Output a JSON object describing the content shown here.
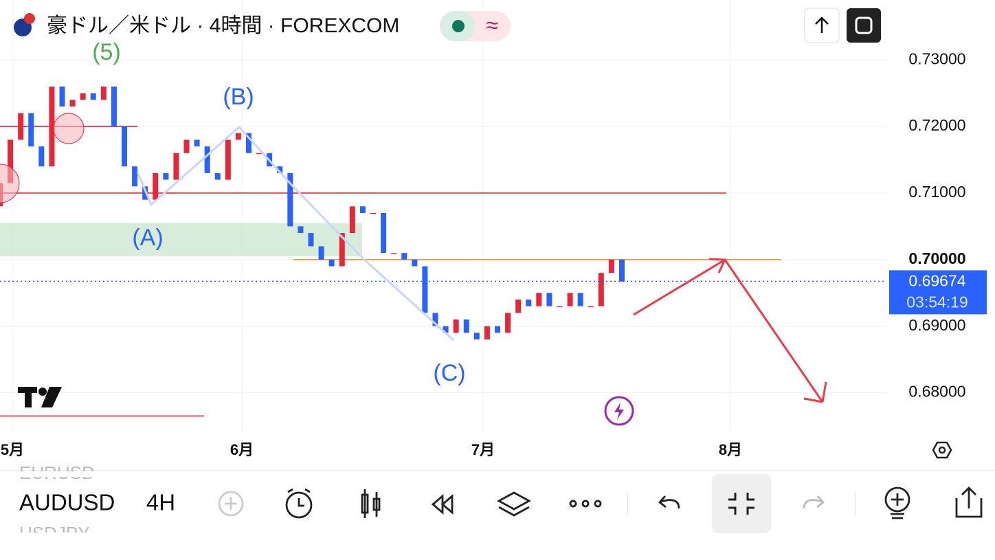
{
  "header": {
    "title": "豪ドル／米ドル · 4時間 · FOREXCOM"
  },
  "chart_data": {
    "type": "candlestick",
    "open": [
      0.708,
      0.7115,
      0.718,
      0.722,
      0.717,
      0.714,
      0.726,
      0.723,
      0.724,
      0.725,
      0.724,
      0.726,
      0.72,
      0.714,
      0.711,
      0.709,
      0.713,
      0.712,
      0.716,
      0.718,
      0.717,
      0.713,
      0.712,
      0.718,
      0.719,
      0.716,
      0.716,
      0.714,
      0.713,
      0.705,
      0.704,
      0.702,
      0.7,
      0.699,
      0.704,
      0.708,
      0.707,
      0.707,
      0.701,
      0.701,
      0.7,
      0.699,
      0.692,
      0.69,
      0.689,
      0.691,
      0.689,
      0.688,
      0.69,
      0.689,
      0.692,
      0.694,
      0.693,
      0.695,
      0.693,
      0.693,
      0.695,
      0.693,
      0.693,
      0.698,
      0.7
    ],
    "close": [
      0.7115,
      0.718,
      0.722,
      0.717,
      0.714,
      0.726,
      0.723,
      0.724,
      0.725,
      0.724,
      0.726,
      0.72,
      0.714,
      0.711,
      0.709,
      0.713,
      0.712,
      0.716,
      0.718,
      0.717,
      0.713,
      0.712,
      0.718,
      0.719,
      0.716,
      0.716,
      0.714,
      0.713,
      0.705,
      0.704,
      0.702,
      0.7,
      0.699,
      0.704,
      0.708,
      0.707,
      0.707,
      0.701,
      0.701,
      0.7,
      0.699,
      0.692,
      0.69,
      0.689,
      0.691,
      0.689,
      0.688,
      0.69,
      0.689,
      0.692,
      0.694,
      0.693,
      0.695,
      0.693,
      0.693,
      0.695,
      0.693,
      0.693,
      0.698,
      0.7,
      0.6967
    ],
    "up_color": "#e8263a",
    "down_color": "#2962ff",
    "ylim": [
      0.675,
      0.739
    ],
    "yticks": [
      {
        "value": 0.73,
        "label": "0.73000"
      },
      {
        "value": 0.72,
        "label": "0.72000"
      },
      {
        "value": 0.71,
        "label": "0.71000"
      },
      {
        "value": 0.7,
        "label": "0.70000"
      },
      {
        "value": 0.69,
        "label": "0.69000"
      },
      {
        "value": 0.68,
        "label": "0.68000"
      }
    ],
    "x_labels": [
      "5月",
      "6月",
      "7月",
      "8月"
    ],
    "last_price": {
      "value": 0.69674,
      "label": "0.69674"
    },
    "countdown": "03:54:19",
    "annotations": [
      "(5)",
      "(B)",
      "(A)",
      "(C)"
    ],
    "levels": [
      {
        "value": 0.72,
        "color": "#e8263a"
      },
      {
        "value": 0.71,
        "color": "#e8263a"
      },
      {
        "value": 0.7,
        "color": "#f59431"
      },
      {
        "value": 0.6765,
        "color": "#e8263a"
      }
    ],
    "zone": [
      0.7055,
      0.7005
    ]
  },
  "toolbar": {
    "symbols": [
      "EURUSD",
      "AUDUSD",
      "USDJPY"
    ],
    "interval": "4H"
  }
}
